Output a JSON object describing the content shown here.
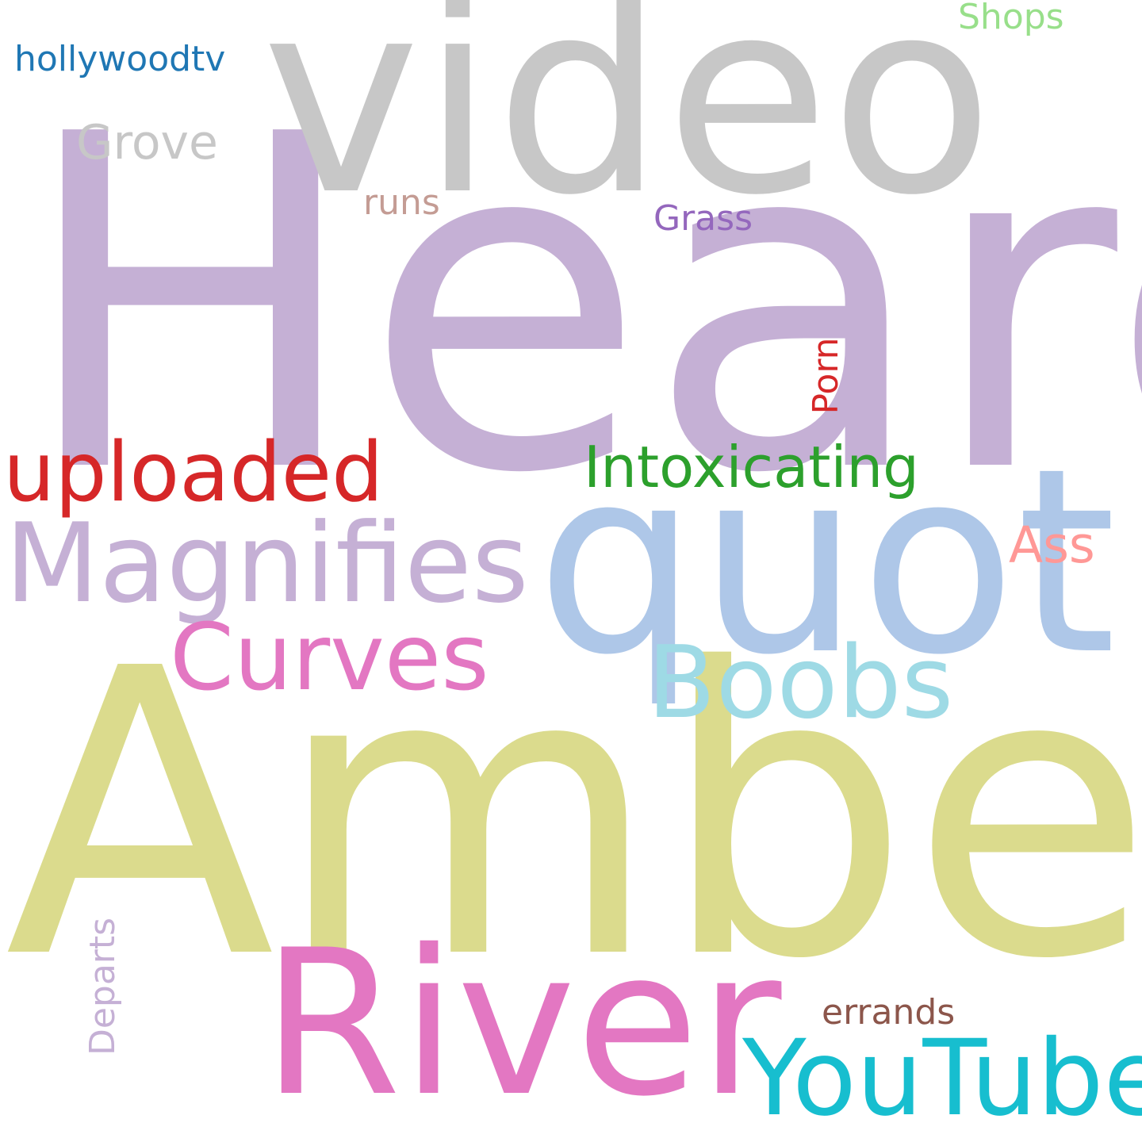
{
  "words": {
    "heard": {
      "text": "Heard",
      "color": "#c5b0d5"
    },
    "amber": {
      "text": "Amber",
      "color": "#dbdb8d"
    },
    "video": {
      "text": "video",
      "color": "#c7c7c7"
    },
    "quot": {
      "text": "quot",
      "color": "#aec7e8"
    },
    "river": {
      "text": "River",
      "color": "#e377c2"
    },
    "youtube": {
      "text": "YouTube",
      "color": "#17becf"
    },
    "magnifies": {
      "text": "Magnifies",
      "color": "#c5b0d5"
    },
    "boobs": {
      "text": "Boobs",
      "color": "#9edae5"
    },
    "curves": {
      "text": "Curves",
      "color": "#e377c2"
    },
    "uploaded": {
      "text": "uploaded",
      "color": "#d62728"
    },
    "intoxicating": {
      "text": "Intoxicating",
      "color": "#2ca02c"
    },
    "ass": {
      "text": "Ass",
      "color": "#ff9896"
    },
    "grove": {
      "text": "Grove",
      "color": "#c7c7c7"
    },
    "errands": {
      "text": "errands",
      "color": "#8c564b"
    },
    "hollywoodtv": {
      "text": "hollywoodtv",
      "color": "#1f77b4"
    },
    "grass": {
      "text": "Grass",
      "color": "#9467bd"
    },
    "runs": {
      "text": "runs",
      "color": "#c49c94"
    },
    "shops": {
      "text": "Shops",
      "color": "#98df8a"
    },
    "departs": {
      "text": "Departs",
      "color": "#c5b0d5"
    },
    "porn": {
      "text": "Porn",
      "color": "#d62728"
    }
  }
}
